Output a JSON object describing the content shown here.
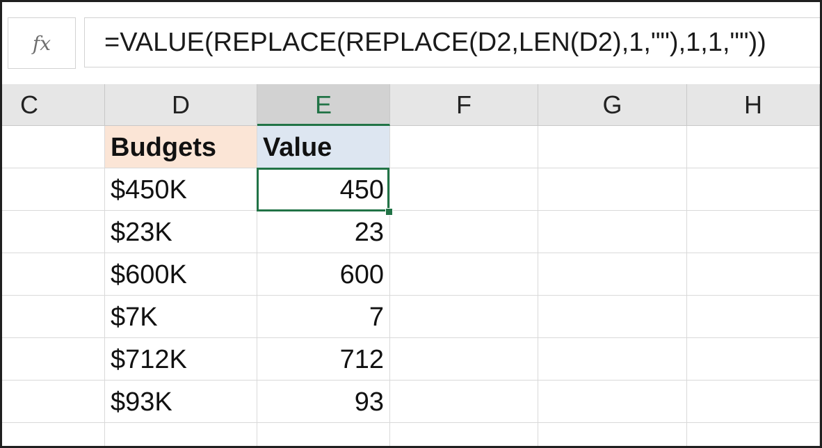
{
  "formula_bar": {
    "fx_label": "fx",
    "formula": "=VALUE(REPLACE(REPLACE(D2,LEN(D2),1,\"\"),1,1,\"\"))"
  },
  "columns": {
    "c": "C",
    "d": "D",
    "e": "E",
    "f": "F",
    "g": "G",
    "h": "H"
  },
  "active_column": "E",
  "table": {
    "headers": {
      "budgets": "Budgets",
      "value": "Value"
    },
    "rows": [
      {
        "budget": "$450K",
        "value": "450"
      },
      {
        "budget": "$23K",
        "value": "23"
      },
      {
        "budget": "$600K",
        "value": "600"
      },
      {
        "budget": "$7K",
        "value": "7"
      },
      {
        "budget": "$712K",
        "value": "712"
      },
      {
        "budget": "$93K",
        "value": "93"
      }
    ]
  },
  "selected_cell": "E2",
  "colors": {
    "accent": "#217346",
    "budget_header_fill": "#fbe5d6",
    "value_header_fill": "#dde6f1"
  }
}
